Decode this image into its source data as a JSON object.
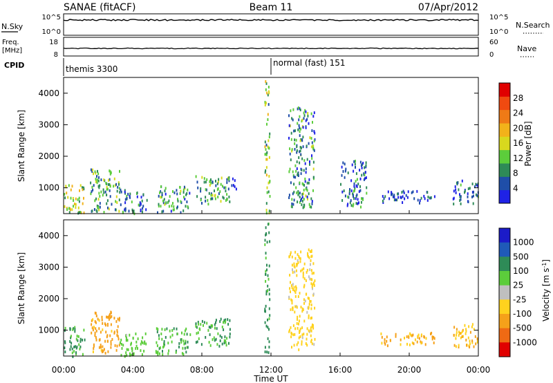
{
  "header": {
    "station": "SANAE (fitACF)",
    "beam": "Beam 11",
    "date": "07/Apr/2012"
  },
  "noise_panel": {
    "left_label": "N.Sky",
    "left_ticks": [
      "10^5",
      "10^0"
    ],
    "right_label": "N.Search",
    "right_ticks": [
      "10^5",
      "10^0"
    ]
  },
  "freq_panel": {
    "left_label_line1": "Freq.",
    "left_label_line2": "[MHz]",
    "left_ticks": [
      "18",
      "8"
    ],
    "right_label": "Nave",
    "right_ticks": [
      "60",
      "0"
    ]
  },
  "cpid": {
    "label": "CPID",
    "modes": [
      {
        "name": "themis 3300",
        "start_hour": 0
      },
      {
        "name": "normal (fast) 151",
        "start_hour": 12
      }
    ]
  },
  "legend_colors": {
    "noise_line": "#000000",
    "power_scale": [
      "#1f22e6",
      "#1f4ea8",
      "#2e8b57",
      "#5ccd3b",
      "#d8d81e",
      "#f2b21a",
      "#ef7a16",
      "#f04a10",
      "#e00000"
    ],
    "velocity_scale": [
      "#1b1bc8",
      "#1f5ab8",
      "#2e8b57",
      "#5ccd3b",
      "#bfbfbf",
      "#ffd21e",
      "#f5a11a",
      "#ef6a14",
      "#e00000"
    ]
  },
  "chart_data": [
    {
      "type": "heatmap",
      "title": "",
      "xlabel": "",
      "ylabel": "Slant Range [km]",
      "xlim": [
        0,
        24
      ],
      "ylim": [
        180,
        4500
      ],
      "yticks": [
        "1000",
        "2000",
        "3000",
        "4000"
      ],
      "colorbar": {
        "label": "Power [dB]",
        "ticks": [
          "4",
          "8",
          "12",
          "16",
          "20",
          "24",
          "28"
        ],
        "range": [
          0,
          30
        ]
      },
      "echo_regions": [
        {
          "t_start": 0.0,
          "t_end": 1.2,
          "range_start": 200,
          "range_end": 1150,
          "value": 14
        },
        {
          "t_start": 1.5,
          "t_end": 3.2,
          "range_start": 250,
          "range_end": 1650,
          "value": 10
        },
        {
          "t_start": 3.2,
          "t_end": 4.8,
          "range_start": 200,
          "range_end": 1000,
          "value": 6
        },
        {
          "t_start": 5.3,
          "t_end": 7.3,
          "range_start": 250,
          "range_end": 1100,
          "value": 8
        },
        {
          "t_start": 7.6,
          "t_end": 9.6,
          "range_start": 500,
          "range_end": 1400,
          "value": 10
        },
        {
          "t_start": 9.5,
          "t_end": 10.0,
          "range_start": 1000,
          "range_end": 1400,
          "value": 5
        },
        {
          "t_start": 11.6,
          "t_end": 11.9,
          "range_start": 200,
          "range_end": 4500,
          "value": 12
        },
        {
          "t_start": 13.0,
          "t_end": 14.5,
          "range_start": 400,
          "range_end": 3600,
          "value": 8
        },
        {
          "t_start": 16.0,
          "t_end": 17.5,
          "range_start": 400,
          "range_end": 1900,
          "value": 6
        },
        {
          "t_start": 18.3,
          "t_end": 21.5,
          "range_start": 550,
          "range_end": 950,
          "value": 4
        },
        {
          "t_start": 22.5,
          "t_end": 24.0,
          "range_start": 500,
          "range_end": 1300,
          "value": 5
        }
      ]
    },
    {
      "type": "heatmap",
      "title": "",
      "xlabel": "Time UT",
      "ylabel": "Slant Range [km]",
      "xlim": [
        0,
        24
      ],
      "ylim": [
        180,
        4500
      ],
      "xticks": [
        "00:00",
        "04:00",
        "08:00",
        "12:00",
        "16:00",
        "20:00",
        "00:00"
      ],
      "yticks": [
        "1000",
        "2000",
        "3000",
        "4000"
      ],
      "colorbar": {
        "label": "Velocity [m s",
        "label_sup": "-1",
        "label_end": "]",
        "ticks": [
          "1000",
          "500",
          "100",
          "25",
          "-25",
          "-100",
          "-500",
          "-1000"
        ]
      },
      "echo_regions": [
        {
          "t_start": 0.0,
          "t_end": 1.2,
          "range_start": 200,
          "range_end": 1150,
          "value": 150
        },
        {
          "t_start": 1.5,
          "t_end": 3.2,
          "range_start": 300,
          "range_end": 1650,
          "value": -200
        },
        {
          "t_start": 3.2,
          "t_end": 4.8,
          "range_start": 200,
          "range_end": 1000,
          "value": 60
        },
        {
          "t_start": 5.3,
          "t_end": 7.3,
          "range_start": 250,
          "range_end": 1100,
          "value": 80
        },
        {
          "t_start": 7.6,
          "t_end": 9.6,
          "range_start": 500,
          "range_end": 1400,
          "value": 100
        },
        {
          "t_start": 11.6,
          "t_end": 11.9,
          "range_start": 200,
          "range_end": 4500,
          "value": 150
        },
        {
          "t_start": 13.0,
          "t_end": 14.5,
          "range_start": 400,
          "range_end": 3600,
          "value": -50
        },
        {
          "t_start": 18.3,
          "t_end": 21.5,
          "range_start": 550,
          "range_end": 950,
          "value": -150
        },
        {
          "t_start": 22.5,
          "t_end": 24.0,
          "range_start": 500,
          "range_end": 1300,
          "value": -100
        }
      ]
    }
  ]
}
